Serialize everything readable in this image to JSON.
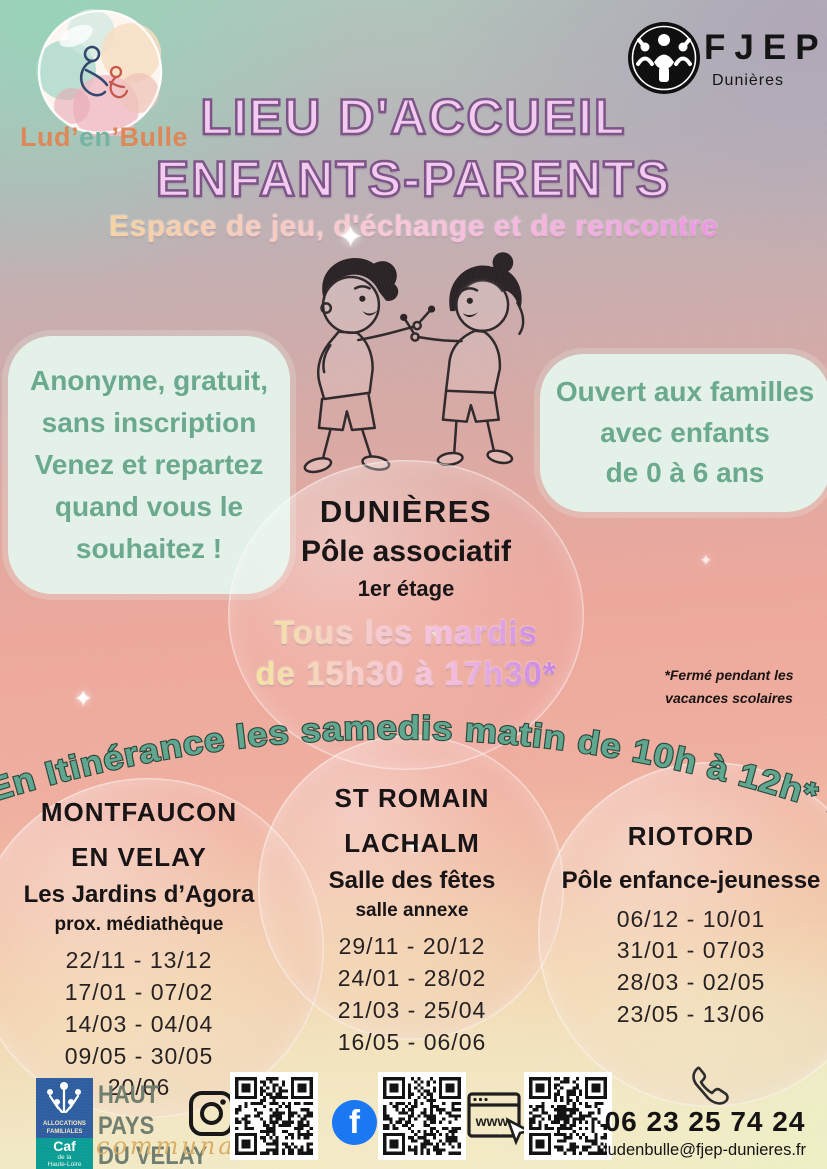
{
  "logo": {
    "part1": "Lud’",
    "part2": "en",
    "part3": "’Bulle"
  },
  "fjep": {
    "name": "FJEP",
    "place": "Dunières"
  },
  "header": {
    "title_line1": "LIEU D'ACCUEIL",
    "title_line2": "ENFANTS-PARENTS",
    "subtitle": "Espace de jeu, d'échange et de rencontre"
  },
  "info_left": "Anonyme, gratuit,\nsans inscription\nVenez et repartez\nquand vous le\nsouhaitez !",
  "info_right": "Ouvert aux familles\navec enfants\nde 0 à 6 ans",
  "dunieres": {
    "city": "DUNIÈRES",
    "venue": "Pôle associatif",
    "floor": "1er étage",
    "schedule1": "Tous les mardis",
    "schedule2": "de 15h30 à 17h30*"
  },
  "footnote": "*Fermé pendant les\nvacances scolaires",
  "itinerance": "En Itinérance les samedis matin de 10h à 12h* :",
  "locations": [
    {
      "name": "MONTFAUCON\nEN VELAY",
      "venue": "Les Jardins d’Agora",
      "detail": "prox. médiathèque",
      "dates": "22/11 - 13/12\n17/01 - 07/02\n14/03 - 04/04\n09/05 - 30/05\n20/06"
    },
    {
      "name": "ST ROMAIN\nLACHALM",
      "venue": "Salle des fêtes",
      "detail": "salle annexe",
      "dates": "29/11 - 20/12\n24/01 - 28/02\n21/03 - 25/04\n16/05 - 06/06"
    },
    {
      "name": "RIOTORD",
      "venue": "Pôle enfance-jeunesse",
      "detail": "",
      "dates": "06/12 - 10/01\n31/01 - 07/03\n28/03 - 02/05\n23/05 - 13/06"
    }
  ],
  "footer": {
    "caf": {
      "org": "ALLOCATIONS\nFAMILIALES",
      "name": "Caf",
      "region": "de la\nHaute-Loire"
    },
    "haut_pays": {
      "line1": "HAUT PAYS",
      "line2": "DU VELAY",
      "script": "communauté"
    },
    "facebook_letter": "f",
    "www_label": "www",
    "phone": "06 23 25 74 24",
    "email": "ludenbulle@fjep-dunieres.fr"
  },
  "colors": {
    "title_fill": "#f3cbf1",
    "title_stroke": "#7c5386",
    "info_text": "#69a88e",
    "info_bg": "#e3f1e8",
    "arc_text": "#5fa68f",
    "caf_blue": "#2e5ea0",
    "caf_teal": "#0a9d95",
    "facebook_blue": "#1877f2",
    "haut_pays_green": "#6f7d6f",
    "script_gold": "#d8ae67"
  }
}
